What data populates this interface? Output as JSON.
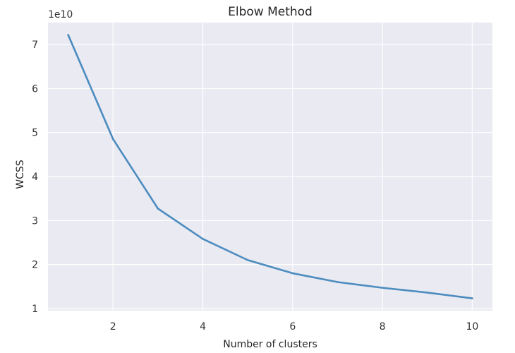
{
  "chart_data": {
    "type": "line",
    "title": "Elbow Method",
    "xlabel": "Number of clusters",
    "ylabel": "WCSS",
    "y_offset_text": "1e10",
    "x": [
      1,
      2,
      3,
      4,
      5,
      6,
      7,
      8,
      9,
      10
    ],
    "series": [
      {
        "values": [
          7.22,
          4.85,
          3.27,
          2.58,
          2.1,
          1.8,
          1.6,
          1.47,
          1.36,
          1.23
        ],
        "color": "#4c8cbf"
      }
    ],
    "xlim": [
      0.55,
      10.45
    ],
    "ylim": [
      0.95,
      7.5
    ],
    "xticks": [
      2,
      4,
      6,
      8,
      10
    ],
    "yticks": [
      1,
      2,
      3,
      4,
      5,
      6,
      7
    ],
    "grid": true,
    "background": "#eaeaf2"
  }
}
